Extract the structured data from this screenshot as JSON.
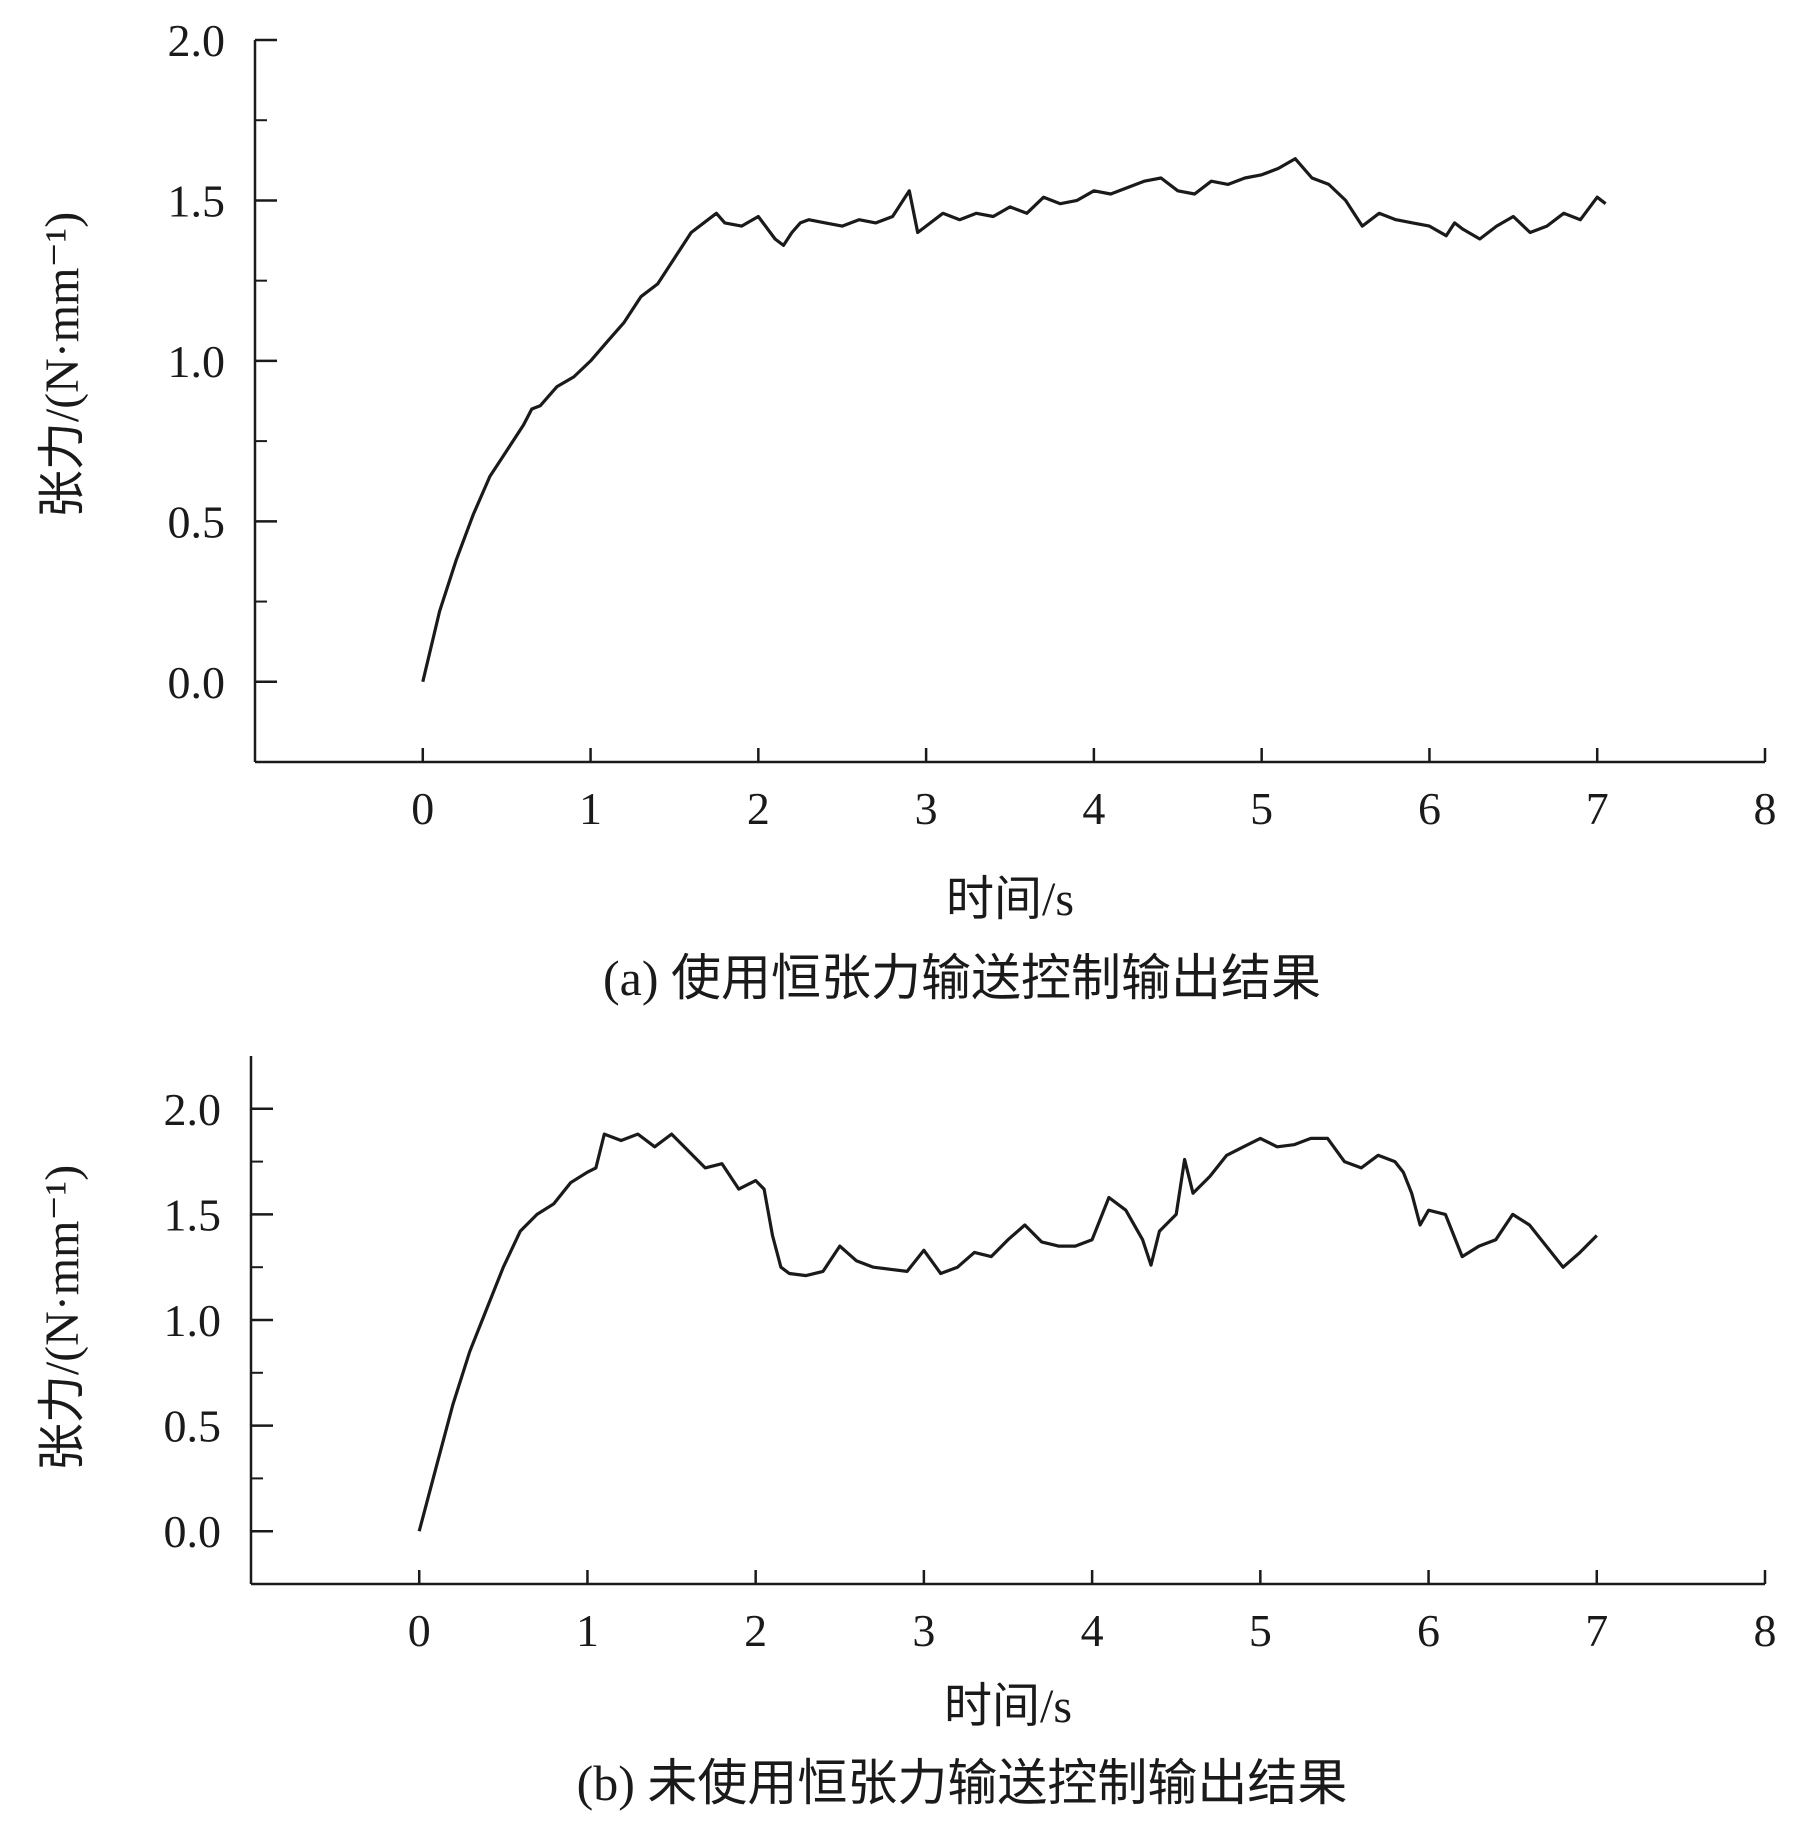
{
  "chart_data": [
    {
      "type": "line",
      "caption": "(a) 使用恒张力输送控制输出结果",
      "xlabel": "时间/s",
      "ylabel": "张力/(N·mm⁻¹)",
      "xlim": [
        -1,
        8
      ],
      "ylim": [
        -0.25,
        2.0
      ],
      "xticks": [
        "0",
        "1",
        "2",
        "3",
        "4",
        "5",
        "6",
        "7",
        "8"
      ],
      "yticks": [
        "0.0",
        "0.5",
        "1.0",
        "1.5",
        "2.0"
      ],
      "grid": false,
      "line_color": "#1a1a1a",
      "x": [
        0.0,
        0.1,
        0.2,
        0.3,
        0.4,
        0.5,
        0.6,
        0.65,
        0.7,
        0.8,
        0.9,
        1.0,
        1.1,
        1.2,
        1.3,
        1.4,
        1.5,
        1.6,
        1.7,
        1.75,
        1.8,
        1.9,
        2.0,
        2.1,
        2.15,
        2.2,
        2.25,
        2.3,
        2.4,
        2.5,
        2.6,
        2.7,
        2.8,
        2.9,
        2.95,
        3.0,
        3.1,
        3.2,
        3.3,
        3.4,
        3.5,
        3.6,
        3.7,
        3.8,
        3.9,
        4.0,
        4.1,
        4.2,
        4.3,
        4.4,
        4.5,
        4.6,
        4.7,
        4.8,
        4.9,
        5.0,
        5.1,
        5.2,
        5.3,
        5.4,
        5.5,
        5.6,
        5.7,
        5.8,
        5.9,
        6.0,
        6.1,
        6.15,
        6.2,
        6.3,
        6.4,
        6.5,
        6.6,
        6.7,
        6.8,
        6.9,
        7.0,
        7.05
      ],
      "y": [
        0.0,
        0.22,
        0.38,
        0.52,
        0.64,
        0.72,
        0.8,
        0.85,
        0.86,
        0.92,
        0.95,
        1.0,
        1.06,
        1.12,
        1.2,
        1.24,
        1.32,
        1.4,
        1.44,
        1.46,
        1.43,
        1.42,
        1.45,
        1.38,
        1.36,
        1.4,
        1.43,
        1.44,
        1.43,
        1.42,
        1.44,
        1.43,
        1.45,
        1.53,
        1.4,
        1.42,
        1.46,
        1.44,
        1.46,
        1.45,
        1.48,
        1.46,
        1.51,
        1.49,
        1.5,
        1.53,
        1.52,
        1.54,
        1.56,
        1.57,
        1.53,
        1.52,
        1.56,
        1.55,
        1.57,
        1.58,
        1.6,
        1.63,
        1.57,
        1.55,
        1.5,
        1.42,
        1.46,
        1.44,
        1.43,
        1.42,
        1.39,
        1.43,
        1.41,
        1.38,
        1.42,
        1.45,
        1.4,
        1.42,
        1.46,
        1.44,
        1.51,
        1.49
      ]
    },
    {
      "type": "line",
      "caption": "(b) 未使用恒张力输送控制输出结果",
      "xlabel": "时间/s",
      "ylabel": "张力/(N·mm⁻¹)",
      "xlim": [
        -1,
        8
      ],
      "ylim": [
        -0.25,
        2.25
      ],
      "xticks": [
        "0",
        "1",
        "2",
        "3",
        "4",
        "5",
        "6",
        "7",
        "8"
      ],
      "yticks": [
        "0.0",
        "0.5",
        "1.0",
        "1.5",
        "2.0"
      ],
      "grid": false,
      "line_color": "#1a1a1a",
      "x": [
        0.0,
        0.1,
        0.2,
        0.3,
        0.4,
        0.5,
        0.6,
        0.7,
        0.8,
        0.9,
        1.0,
        1.05,
        1.1,
        1.2,
        1.3,
        1.4,
        1.5,
        1.6,
        1.7,
        1.8,
        1.9,
        2.0,
        2.05,
        2.1,
        2.15,
        2.2,
        2.3,
        2.4,
        2.5,
        2.6,
        2.7,
        2.8,
        2.9,
        3.0,
        3.1,
        3.2,
        3.3,
        3.4,
        3.5,
        3.6,
        3.7,
        3.8,
        3.9,
        4.0,
        4.1,
        4.2,
        4.3,
        4.35,
        4.4,
        4.5,
        4.55,
        4.6,
        4.7,
        4.8,
        4.9,
        5.0,
        5.1,
        5.2,
        5.3,
        5.4,
        5.5,
        5.6,
        5.7,
        5.8,
        5.85,
        5.9,
        5.95,
        6.0,
        6.1,
        6.2,
        6.3,
        6.4,
        6.5,
        6.6,
        6.7,
        6.8,
        6.9,
        7.0
      ],
      "y": [
        0.0,
        0.3,
        0.6,
        0.85,
        1.05,
        1.25,
        1.42,
        1.5,
        1.55,
        1.65,
        1.7,
        1.72,
        1.88,
        1.85,
        1.88,
        1.82,
        1.88,
        1.8,
        1.72,
        1.74,
        1.62,
        1.66,
        1.62,
        1.4,
        1.25,
        1.22,
        1.21,
        1.23,
        1.35,
        1.28,
        1.25,
        1.24,
        1.23,
        1.33,
        1.22,
        1.25,
        1.32,
        1.3,
        1.38,
        1.45,
        1.37,
        1.35,
        1.35,
        1.38,
        1.58,
        1.52,
        1.38,
        1.26,
        1.42,
        1.5,
        1.76,
        1.6,
        1.68,
        1.78,
        1.82,
        1.86,
        1.82,
        1.83,
        1.86,
        1.86,
        1.75,
        1.72,
        1.78,
        1.75,
        1.7,
        1.6,
        1.45,
        1.52,
        1.5,
        1.3,
        1.35,
        1.38,
        1.5,
        1.45,
        1.35,
        1.25,
        1.32,
        1.4
      ]
    }
  ]
}
